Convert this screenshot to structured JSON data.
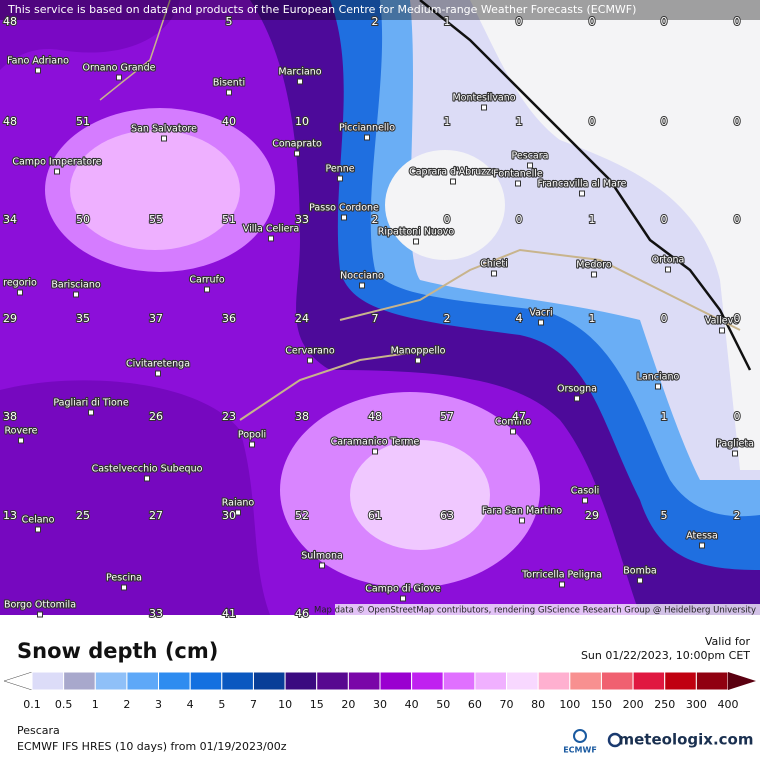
{
  "banner": "This service is based on data and products of the European Centre for Medium-range Weather Forecasts (ECMWF)",
  "places": [
    "Fano Adriano",
    "Ornano Grande",
    "Bisenti",
    "Marciano",
    "Montesilvano",
    "San Salvatore",
    "Campo Imperatore",
    "Conaprato",
    "Picciannello",
    "Pescara",
    "Caprara d'Abruzzo",
    "Fontanelle",
    "Francavilla al Mare",
    "Penne",
    "Passo Cordone",
    "Villa Celiera",
    "Ripattoni Nuovo",
    "Chieti",
    "Medoro",
    "Ortona",
    "Carrufo",
    "Barisciano",
    "regorio",
    "Nocciano",
    "Vacri",
    "Vallevo",
    "Cervarano",
    "Manoppello",
    "Civitaretenga",
    "Orsogna",
    "Lanciano",
    "Pagliari di Tione",
    "Rovere",
    "Popoli",
    "Caramanico Terme",
    "Comino",
    "Paglieta",
    "Castelvecchio Subequo",
    "Raiano",
    "Fara San Martino",
    "Casoli",
    "Celano",
    "Sulmona",
    "Atessa",
    "Pescina",
    "Torricella Peligna",
    "Bomba",
    "Campo di Giove",
    "Borgo Ottomila"
  ],
  "grid_values": [
    48,
    5,
    2,
    1,
    0,
    0,
    0,
    0,
    48,
    51,
    40,
    10,
    1,
    1,
    0,
    0,
    0,
    34,
    50,
    55,
    51,
    33,
    2,
    0,
    0,
    1,
    0,
    0,
    29,
    35,
    37,
    36,
    24,
    7,
    2,
    4,
    1,
    0,
    0,
    38,
    26,
    23,
    38,
    48,
    57,
    47,
    1,
    0,
    13,
    25,
    27,
    30,
    52,
    61,
    63,
    29,
    5,
    2,
    33,
    41,
    46
  ],
  "attribution": "Map data © OpenStreetMap contributors, rendering GIScience Research Group @ Heidelberg University",
  "legend": {
    "title": "Snow depth (cm)",
    "valid_label": "Valid for",
    "valid_time": "Sun 01/22/2023, 10:00pm CET",
    "ticks": [
      0.1,
      0.5,
      1,
      2,
      3,
      4,
      5,
      7,
      10,
      15,
      20,
      30,
      40,
      50,
      60,
      70,
      80,
      100,
      150,
      200,
      250,
      300,
      400
    ],
    "colors": [
      "#ffffff",
      "#dcdcf8",
      "#a8a8cc",
      "#8fc0f8",
      "#5ea8f8",
      "#2e8cf0",
      "#1470e0",
      "#0a58c0",
      "#083e98",
      "#3a0a80",
      "#580890",
      "#7a06a8",
      "#9a00d0",
      "#c020f0",
      "#e070ff",
      "#f0b0ff",
      "#f8d8ff",
      "#ffb0d0",
      "#f89090",
      "#f06070",
      "#e01840",
      "#c00010",
      "#900010",
      "#5a0010"
    ]
  },
  "footer": {
    "location": "Pescara",
    "model": "ECMWF IFS HRES (10 days) from 01/19/2023/00z",
    "ecmwf_logo": "ECMWF",
    "brand": "meteologix.com"
  }
}
